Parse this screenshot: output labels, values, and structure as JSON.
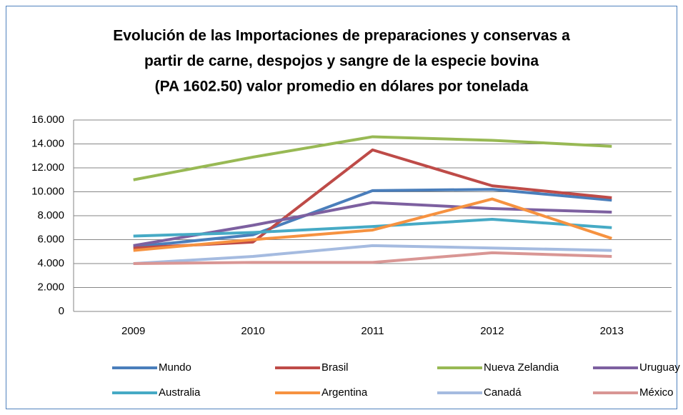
{
  "chart_data": {
    "type": "line",
    "title": [
      "Evolución de las Importaciones de preparaciones y conservas a",
      "partir de carne, despojos y sangre  de la especie bovina",
      "(PA  1602.50)  valor promedio en dólares por tonelada"
    ],
    "categories": [
      "2009",
      "2010",
      "2011",
      "2012",
      "2013"
    ],
    "series": [
      {
        "name": "Mundo",
        "color": "#4a7ebb",
        "values": [
          5400,
          6400,
          10100,
          10200,
          9300
        ]
      },
      {
        "name": "Brasil",
        "color": "#be4b48",
        "values": [
          5300,
          5800,
          13500,
          10500,
          9500
        ]
      },
      {
        "name": "Nueva Zelandia",
        "color": "#98b954",
        "values": [
          11000,
          12900,
          14600,
          14300,
          13800
        ]
      },
      {
        "name": "Uruguay",
        "color": "#7d60a0",
        "values": [
          5500,
          7200,
          9100,
          8600,
          8300
        ]
      },
      {
        "name": "Australia",
        "color": "#46aac5",
        "values": [
          6300,
          6600,
          7100,
          7700,
          7000
        ]
      },
      {
        "name": "Argentina",
        "color": "#f69240",
        "values": [
          5100,
          6000,
          6800,
          9400,
          6100
        ]
      },
      {
        "name": "Canadá",
        "color": "#a5bbe0",
        "values": [
          4000,
          4600,
          5500,
          5300,
          5100
        ]
      },
      {
        "name": "México",
        "color": "#d99694",
        "values": [
          4000,
          4100,
          4100,
          4900,
          4600
        ]
      }
    ],
    "ylim": [
      0,
      16000
    ],
    "yticks": [
      0,
      {
        "value": 2000,
        "label": "2.000"
      },
      {
        "value": 4000,
        "label": "4.000"
      },
      {
        "value": 6000,
        "label": "6.000"
      },
      {
        "value": 8000,
        "label": "8.000"
      },
      {
        "value": 10000,
        "label": "10.000"
      },
      {
        "value": 12000,
        "label": "12.000"
      },
      {
        "value": 14000,
        "label": "14.000"
      },
      {
        "value": 16000,
        "label": "16.000"
      }
    ],
    "grid": true,
    "legend": "bottom"
  }
}
